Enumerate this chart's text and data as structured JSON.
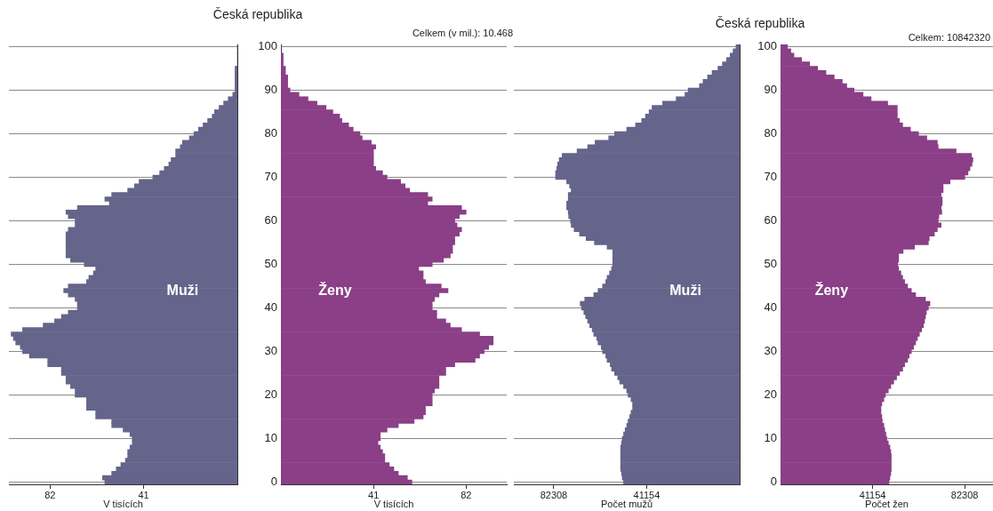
{
  "chart_data": [
    {
      "type": "bar",
      "orientation": "horizontal",
      "title": "Česká republika",
      "xlabel": "V tisících",
      "xlim": [
        100,
        0
      ],
      "xticks": [
        82,
        41
      ],
      "grid": "y",
      "tick_labels": "x",
      "categories": [
        "100",
        null,
        null,
        null,
        null,
        null,
        null,
        null,
        null,
        null,
        "90",
        null,
        null,
        null,
        null,
        null,
        null,
        null,
        null,
        null,
        "80",
        null,
        null,
        null,
        null,
        null,
        null,
        null,
        null,
        null,
        "70",
        null,
        null,
        null,
        null,
        null,
        null,
        null,
        null,
        null,
        "60",
        null,
        null,
        null,
        null,
        null,
        null,
        null,
        null,
        null,
        "50",
        null,
        null,
        null,
        null,
        null,
        null,
        null,
        null,
        null,
        "40",
        null,
        null,
        null,
        null,
        null,
        null,
        null,
        null,
        null,
        "30",
        null,
        null,
        null,
        null,
        null,
        null,
        null,
        null,
        null,
        "20",
        null,
        null,
        null,
        null,
        null,
        null,
        null,
        null,
        null,
        "10",
        null,
        null,
        null,
        null,
        null,
        null,
        null,
        null,
        null,
        "0"
      ],
      "series": [
        {
          "name": "Muži",
          "color": "#65648a",
          "values": [
            0,
            0,
            0,
            0,
            0,
            1,
            1,
            1,
            1,
            1,
            1,
            2,
            4,
            6,
            8,
            10,
            11,
            13,
            15,
            17,
            19,
            21,
            24,
            25,
            27,
            27,
            29,
            30,
            32,
            34,
            37,
            43,
            45,
            48,
            55,
            58,
            56,
            70,
            75,
            74,
            71,
            71,
            74,
            75,
            75,
            75,
            75,
            75,
            75,
            73,
            67,
            62,
            63,
            65,
            66,
            74,
            76,
            74,
            71,
            70,
            70,
            74,
            77,
            80,
            85,
            94,
            99,
            98,
            97,
            95,
            94,
            91,
            83,
            83,
            77,
            77,
            75,
            75,
            73,
            71,
            71,
            66,
            66,
            66,
            62,
            62,
            55,
            55,
            50,
            47,
            46,
            46,
            47,
            48,
            48,
            49,
            51,
            53,
            55,
            59,
            58
          ]
        }
      ]
    },
    {
      "type": "bar",
      "orientation": "horizontal",
      "annotations": [
        "Celkem (v mil.): 10.468"
      ],
      "xlabel": "V tisících",
      "xlim": [
        0,
        100
      ],
      "xticks": [
        41,
        82
      ],
      "grid": "y",
      "categories": [
        "100",
        null,
        null,
        null,
        null,
        null,
        null,
        null,
        null,
        null,
        "90",
        null,
        null,
        null,
        null,
        null,
        null,
        null,
        null,
        null,
        "80",
        null,
        null,
        null,
        null,
        null,
        null,
        null,
        null,
        null,
        "70",
        null,
        null,
        null,
        null,
        null,
        null,
        null,
        null,
        null,
        "60",
        null,
        null,
        null,
        null,
        null,
        null,
        null,
        null,
        null,
        "50",
        null,
        null,
        null,
        null,
        null,
        null,
        null,
        null,
        null,
        "40",
        null,
        null,
        null,
        null,
        null,
        null,
        null,
        null,
        null,
        "30",
        null,
        null,
        null,
        null,
        null,
        null,
        null,
        null,
        null,
        "20",
        null,
        null,
        null,
        null,
        null,
        null,
        null,
        null,
        null,
        "10",
        null,
        null,
        null,
        null,
        null,
        null,
        null,
        null,
        null,
        "0"
      ],
      "series": [
        {
          "name": "Ženy",
          "color": "#8a3f87",
          "values": [
            0,
            0,
            1,
            1,
            1,
            2,
            2,
            3,
            3,
            3,
            4,
            8,
            12,
            16,
            20,
            23,
            26,
            27,
            30,
            32,
            35,
            36,
            40,
            42,
            41,
            41,
            41,
            41,
            42,
            45,
            47,
            53,
            55,
            57,
            65,
            67,
            65,
            80,
            82,
            79,
            77,
            78,
            80,
            79,
            77,
            77,
            76,
            76,
            75,
            72,
            67,
            61,
            63,
            63,
            64,
            71,
            74,
            70,
            68,
            67,
            67,
            69,
            69,
            73,
            75,
            80,
            88,
            94,
            94,
            92,
            90,
            88,
            86,
            77,
            73,
            73,
            70,
            70,
            70,
            68,
            67,
            67,
            67,
            64,
            64,
            63,
            59,
            52,
            47,
            44,
            44,
            43,
            44,
            45,
            46,
            46,
            48,
            50,
            52,
            56,
            58
          ]
        }
      ]
    },
    {
      "type": "bar",
      "orientation": "horizontal",
      "title": "Česká republika",
      "xlabel": "Počet mužů",
      "xlim": [
        100000,
        0
      ],
      "xticks": [
        82308,
        41154
      ],
      "grid": "y",
      "tick_labels": "x",
      "categories": [
        "100",
        null,
        null,
        null,
        null,
        null,
        null,
        null,
        null,
        null,
        "90",
        null,
        null,
        null,
        null,
        null,
        null,
        null,
        null,
        null,
        "80",
        null,
        null,
        null,
        null,
        null,
        null,
        null,
        null,
        null,
        "70",
        null,
        null,
        null,
        null,
        null,
        null,
        null,
        null,
        null,
        "60",
        null,
        null,
        null,
        null,
        null,
        null,
        null,
        null,
        null,
        "50",
        null,
        null,
        null,
        null,
        null,
        null,
        null,
        null,
        null,
        "40",
        null,
        null,
        null,
        null,
        null,
        null,
        null,
        null,
        null,
        "30",
        null,
        null,
        null,
        null,
        null,
        null,
        null,
        null,
        null,
        "20",
        null,
        null,
        null,
        null,
        null,
        null,
        null,
        null,
        null,
        "10",
        null,
        null,
        null,
        null,
        null,
        null,
        null,
        null,
        null,
        "0"
      ],
      "series": [
        {
          "name": "Muži",
          "color": "#65648a",
          "values": [
            1600,
            2900,
            4200,
            5800,
            7600,
            9600,
            12200,
            14200,
            16200,
            17800,
            22800,
            24200,
            28100,
            34100,
            38800,
            40100,
            41700,
            43400,
            46100,
            50000,
            55400,
            58000,
            64000,
            67300,
            72000,
            78600,
            79900,
            80600,
            81000,
            81500,
            81500,
            76600,
            75300,
            74600,
            75900,
            75900,
            76600,
            76600,
            75900,
            75700,
            74900,
            74600,
            73300,
            70900,
            68000,
            64300,
            58700,
            56200,
            56200,
            56200,
            56200,
            56700,
            57600,
            58700,
            59300,
            60700,
            62700,
            64600,
            68600,
            70600,
            70000,
            69000,
            68200,
            67300,
            66400,
            65300,
            64600,
            63300,
            62700,
            61300,
            60700,
            59300,
            58700,
            57300,
            56700,
            55400,
            54000,
            53100,
            51400,
            50000,
            49400,
            48100,
            47400,
            47400,
            48100,
            48700,
            49400,
            50000,
            50700,
            51400,
            52000,
            52300,
            52700,
            52700,
            52700,
            52700,
            52700,
            52700,
            52300,
            52000,
            51400
          ]
        }
      ]
    },
    {
      "type": "bar",
      "orientation": "horizontal",
      "annotations": [
        "Celkem: 10842320"
      ],
      "xlabel": "Počet žen",
      "xlim": [
        0,
        95000
      ],
      "xticks": [
        41154,
        82308
      ],
      "grid": "y",
      "categories": [
        "100",
        null,
        null,
        null,
        null,
        null,
        null,
        null,
        null,
        null,
        "90",
        null,
        null,
        null,
        null,
        null,
        null,
        null,
        null,
        null,
        "80",
        null,
        null,
        null,
        null,
        null,
        null,
        null,
        null,
        null,
        "70",
        null,
        null,
        null,
        null,
        null,
        null,
        null,
        null,
        null,
        "60",
        null,
        null,
        null,
        null,
        null,
        null,
        null,
        null,
        null,
        "50",
        null,
        null,
        null,
        null,
        null,
        null,
        null,
        null,
        null,
        "40",
        null,
        null,
        null,
        null,
        null,
        null,
        null,
        null,
        null,
        "30",
        null,
        null,
        null,
        null,
        null,
        null,
        null,
        null,
        null,
        "20",
        null,
        null,
        null,
        null,
        null,
        null,
        null,
        null,
        null,
        "10",
        null,
        null,
        null,
        null,
        null,
        null,
        null,
        null,
        null,
        "0"
      ],
      "series": [
        {
          "name": "Ženy",
          "color": "#8a3f87",
          "values": [
            3100,
            4600,
            6000,
            9400,
            13000,
            16600,
            20300,
            24000,
            27600,
            29600,
            32900,
            36900,
            40500,
            47900,
            52200,
            52200,
            52200,
            53200,
            54600,
            58100,
            61700,
            65400,
            70100,
            70500,
            78500,
            85400,
            86000,
            85600,
            84700,
            83800,
            82400,
            75800,
            72700,
            72700,
            71800,
            72300,
            72300,
            71800,
            72100,
            70800,
            70500,
            71800,
            70100,
            68800,
            66500,
            66100,
            59900,
            54800,
            52800,
            52800,
            52400,
            52800,
            53800,
            54600,
            55500,
            56800,
            58500,
            60400,
            64800,
            66800,
            66100,
            65200,
            64800,
            64400,
            63900,
            63100,
            62100,
            61200,
            60400,
            59500,
            58500,
            57500,
            56800,
            55500,
            54600,
            53200,
            51900,
            50600,
            49300,
            48200,
            46900,
            46200,
            45300,
            44900,
            44900,
            45300,
            45500,
            46200,
            46600,
            47100,
            47500,
            48200,
            48900,
            49300,
            49500,
            49500,
            49500,
            49500,
            49300,
            48900,
            48500
          ]
        }
      ]
    }
  ]
}
